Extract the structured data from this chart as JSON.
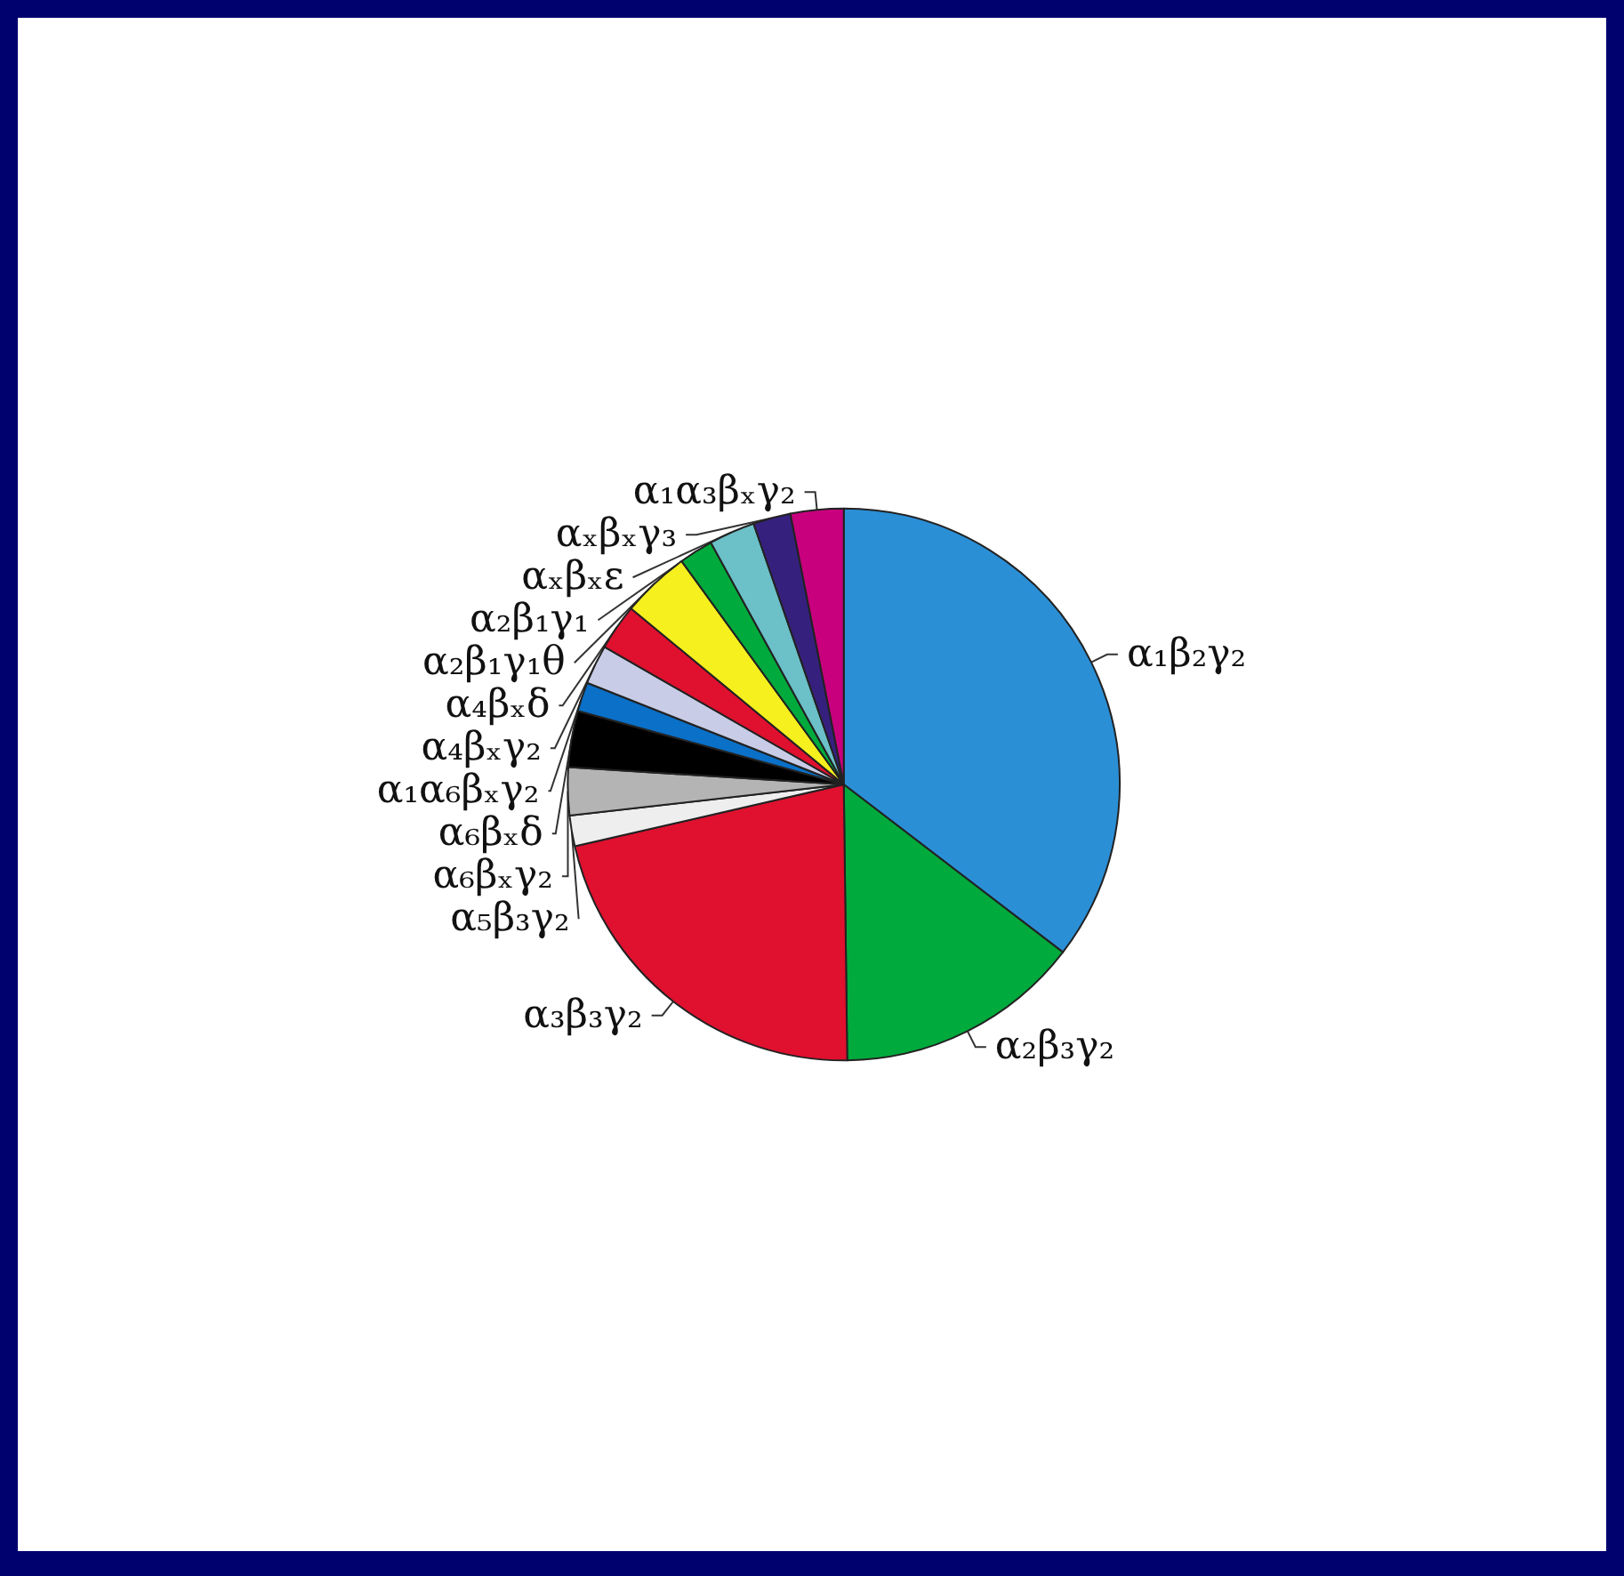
{
  "chart_data": {
    "type": "pie",
    "categories": [
      "α₁β₂γ₂",
      "α₂β₃γ₂",
      "α₃β₃γ₂",
      "α₅β₃γ₂",
      "α₆βₓγ₂",
      "α₆βₓδ",
      "α₁α₆βₓγ₂",
      "α₄βₓγ₂",
      "α₄βₓδ",
      "α₂β₁γ₁θ",
      "α₂β₁γ₁",
      "αₓβₓε",
      "αₓβₓγ₃",
      "α₁α₃βₓγ₂"
    ],
    "values": [
      35.4,
      14.4,
      21.6,
      1.8,
      2.8,
      3.3,
      1.7,
      2.3,
      2.7,
      4,
      2,
      2.7,
      2.2,
      3.1
    ],
    "colors": [
      "#2b8fd6",
      "#00aa3c",
      "#e0102f",
      "#eeeeee",
      "#b4b4b4",
      "#000000",
      "#0a70c8",
      "#c8cce6",
      "#e0102f",
      "#f5f01e",
      "#00aa3c",
      "#6cc0c8",
      "#36207e",
      "#c8007e"
    ]
  }
}
